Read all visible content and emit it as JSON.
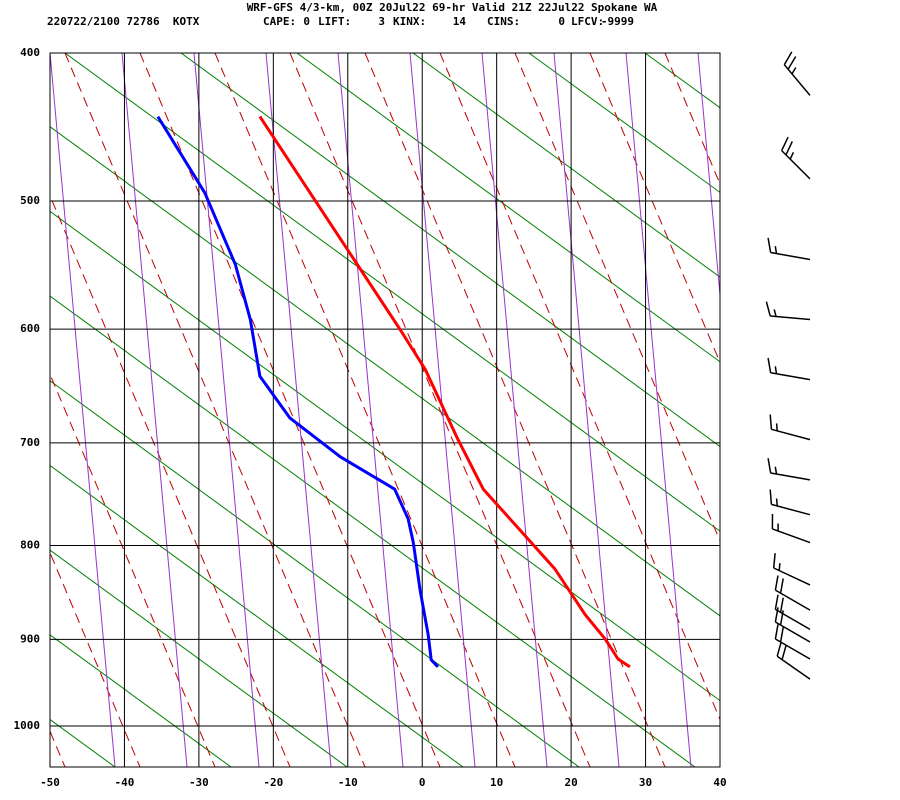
{
  "chart_data": {
    "type": "skewt",
    "title": "WRF-GFS 4/3-km, 00Z 20Jul22 69-hr Valid 21Z 22Jul22 Spokane WA",
    "subtitle": "220722/2100 72786  KOTX",
    "indices": [
      {
        "label": "CAPE:",
        "value": 0
      },
      {
        "label": "LIFT:",
        "value": 3
      },
      {
        "label": "KINX:",
        "value": 14
      },
      {
        "label": "CINS:",
        "value": 0
      },
      {
        "label": "LFCV:",
        "value": -9999
      }
    ],
    "xlim": [
      -50,
      40
    ],
    "xticks": [
      -50,
      -40,
      -30,
      -20,
      -10,
      0,
      10,
      20,
      30,
      40
    ],
    "ylim": [
      400,
      1050
    ],
    "yticks": [
      400,
      500,
      600,
      700,
      800,
      900,
      1000
    ],
    "yscale": "power",
    "yexponent": 0.286,
    "grid": true,
    "series": [
      {
        "color": "#ff0000",
        "x": [
          -21.8,
          -3.0,
          0.4,
          4.8,
          8.2,
          13.1,
          17.8,
          21.9,
          24.6,
          26.3,
          27.9
        ],
        "values": [
          441,
          600,
          634,
          697,
          744,
          784,
          824,
          873,
          900,
          922,
          931
        ]
      },
      {
        "color": "#0000ff",
        "x": [
          -35.5,
          -29.2,
          -25.1,
          -23.1,
          -21.8,
          -17.8,
          -11.0,
          -3.7,
          -1.9,
          -1.2,
          -0.3,
          0.8,
          1.2,
          2.1
        ],
        "values": [
          441,
          494,
          548,
          592,
          640,
          677,
          713,
          744,
          773,
          797,
          846,
          895,
          923,
          931
        ]
      }
    ],
    "wind_pressure": [
      427,
      484,
      544,
      592,
      643,
      697,
      735,
      769,
      797,
      841,
      868,
      889,
      903,
      922,
      945
    ],
    "wind_dir": [
      320,
      315,
      280,
      275,
      280,
      285,
      280,
      285,
      290,
      295,
      300,
      300,
      300,
      300,
      305
    ],
    "wind_speed": [
      25,
      25,
      15,
      15,
      15,
      15,
      15,
      15,
      15,
      15,
      20,
      20,
      20,
      20,
      20
    ]
  }
}
